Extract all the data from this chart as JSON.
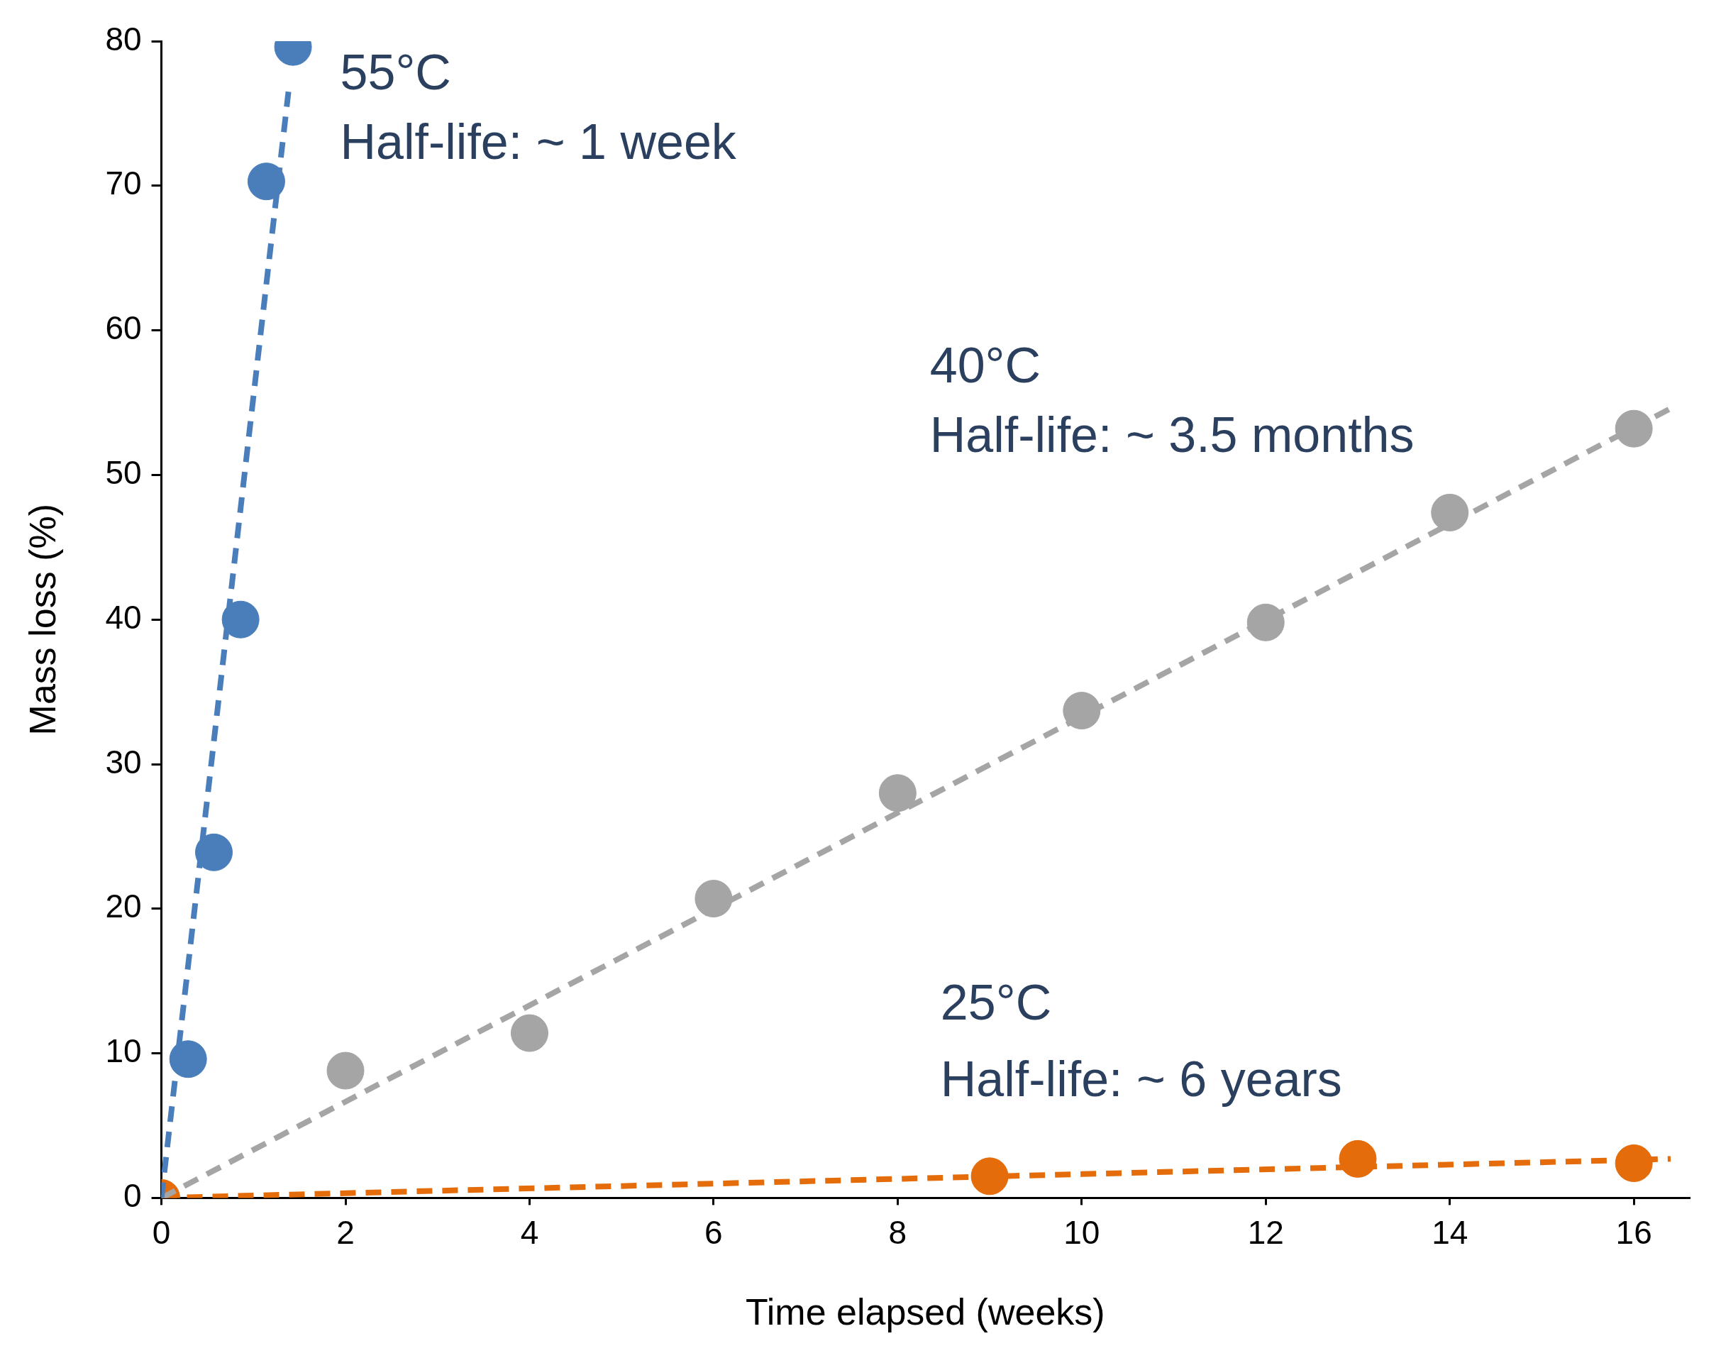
{
  "chart_data": {
    "type": "scatter",
    "xlabel": "Time elapsed (weeks)",
    "ylabel": "Mass loss (%)",
    "xlim": [
      0,
      16.6
    ],
    "xticks": [
      0,
      2,
      4,
      6,
      8,
      10,
      12,
      14,
      16
    ],
    "ylim": [
      0,
      80
    ],
    "yticks": [
      0,
      10,
      20,
      30,
      40,
      50,
      60,
      70,
      80
    ],
    "grid": false,
    "legend": false,
    "marker": "circle",
    "series": [
      {
        "type": "line",
        "color": "#4a7ebb",
        "x": [
          0,
          1.38
        ],
        "values": [
          0,
          76.5
        ],
        "marker": "none",
        "line_style": "dashed"
      },
      {
        "type": "line",
        "color": "#a5a5a5",
        "x": [
          0,
          16.4
        ],
        "values": [
          0,
          54.6
        ],
        "marker": "none",
        "line_style": "dashed"
      },
      {
        "type": "line",
        "color": "#e46c0a",
        "x": [
          0,
          16.4
        ],
        "values": [
          0,
          2.7
        ],
        "marker": "none",
        "line_style": "dashed"
      },
      {
        "color": "#4a7ebb",
        "x": [
          0.29,
          0.57,
          0.86,
          1.14,
          1.43
        ],
        "values": [
          9.6,
          23.9,
          40.0,
          70.3,
          79.6
        ]
      },
      {
        "color": "#a5a5a5",
        "x": [
          2,
          4,
          6,
          8,
          10,
          12,
          14,
          16
        ],
        "values": [
          8.8,
          11.4,
          20.7,
          28.0,
          33.7,
          39.8,
          47.4,
          53.2
        ]
      },
      {
        "color": "#e46c0a",
        "x": [
          0,
          9,
          13,
          16
        ],
        "values": [
          0,
          1.5,
          2.7,
          2.4
        ]
      }
    ],
    "annotations": [
      "55°C",
      "Half-life: ~ 1 week",
      "40°C",
      "Half-life: ~ 3.5 months",
      "25°C",
      "Half-life: ~ 6 years"
    ]
  }
}
